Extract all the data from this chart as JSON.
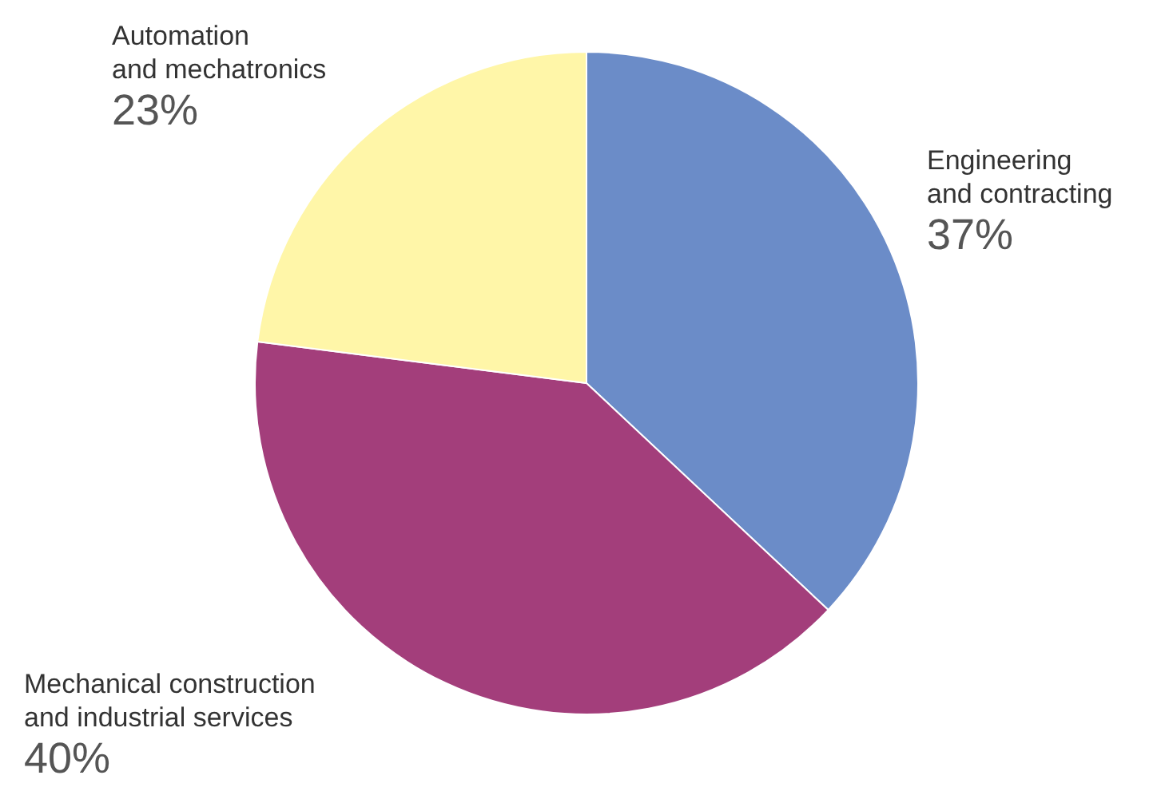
{
  "chart_data": {
    "type": "pie",
    "categories": [
      "Engineering\nand contracting",
      "Mechanical construction\nand industrial services",
      "Automation\nand mechatronics"
    ],
    "values": [
      37,
      40,
      23
    ],
    "value_labels": [
      "37%",
      "40%",
      "23%"
    ],
    "colors": [
      "#6b8cc8",
      "#a33e7b",
      "#fff6a8"
    ],
    "legend": false
  }
}
